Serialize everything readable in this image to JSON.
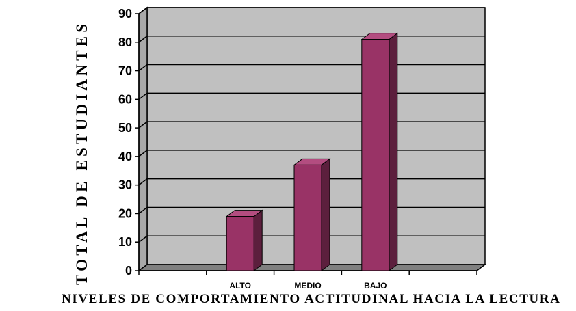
{
  "chart_data": {
    "type": "bar",
    "title": "",
    "categories": [
      "ALTO",
      "MEDIO",
      "BAJO"
    ],
    "values": [
      19,
      37,
      81
    ],
    "xlabel": "NIVELES   DE COMPORTAMIENTO ACTITUDINAL HACIA LA LECTURA",
    "ylabel": "TOTAL   DE   ESTUDIANTES",
    "ylim": [
      0,
      90
    ],
    "yticks": [
      "0",
      "10",
      "20",
      "30",
      "40",
      "50",
      "60",
      "70",
      "80",
      "90"
    ],
    "grid": true,
    "legend": "none",
    "style": "3d-column",
    "colors": {
      "bar_front": "#993366",
      "bar_side": "#5c1f3d",
      "bar_top": "#b34d80",
      "wall": "#c0c0c0",
      "floor": "#808080"
    }
  }
}
